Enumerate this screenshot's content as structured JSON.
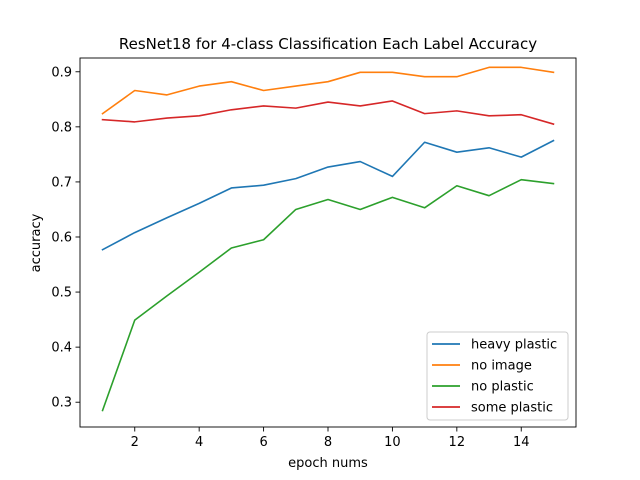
{
  "chart_data": {
    "type": "line",
    "title": "ResNet18 for 4-class Classification Each Label Accuracy",
    "xlabel": "epoch nums",
    "ylabel": "accuracy",
    "x": [
      1,
      2,
      3,
      4,
      5,
      6,
      7,
      8,
      9,
      10,
      11,
      12,
      13,
      14,
      15
    ],
    "xlim": [
      0.3,
      15.7
    ],
    "ylim": [
      0.255,
      0.925
    ],
    "xticks": [
      2,
      4,
      6,
      8,
      10,
      12,
      14
    ],
    "yticks": [
      0.3,
      0.4,
      0.5,
      0.6,
      0.7,
      0.8,
      0.9
    ],
    "xtick_labels": [
      "2",
      "4",
      "6",
      "8",
      "10",
      "12",
      "14"
    ],
    "ytick_labels": [
      "0.3",
      "0.4",
      "0.5",
      "0.6",
      "0.7",
      "0.8",
      "0.9"
    ],
    "grid": false,
    "legend_position": "lower-right",
    "series": [
      {
        "name": "heavy plastic",
        "color": "#1f77b4",
        "values": [
          0.577,
          0.608,
          0.635,
          0.661,
          0.689,
          0.694,
          0.706,
          0.727,
          0.737,
          0.71,
          0.772,
          0.754,
          0.762,
          0.745,
          0.775
        ]
      },
      {
        "name": "no image",
        "color": "#ff7f0e",
        "values": [
          0.824,
          0.866,
          0.858,
          0.874,
          0.882,
          0.866,
          0.874,
          0.882,
          0.899,
          0.899,
          0.891,
          0.891,
          0.908,
          0.908,
          0.899
        ]
      },
      {
        "name": "no plastic",
        "color": "#2ca02c",
        "values": [
          0.285,
          0.449,
          0.493,
          0.536,
          0.58,
          0.595,
          0.65,
          0.668,
          0.65,
          0.672,
          0.653,
          0.693,
          0.675,
          0.704,
          0.697
        ]
      },
      {
        "name": "some plastic",
        "color": "#d62728",
        "values": [
          0.813,
          0.809,
          0.816,
          0.82,
          0.831,
          0.838,
          0.834,
          0.845,
          0.838,
          0.847,
          0.824,
          0.829,
          0.82,
          0.822,
          0.805
        ]
      }
    ]
  }
}
